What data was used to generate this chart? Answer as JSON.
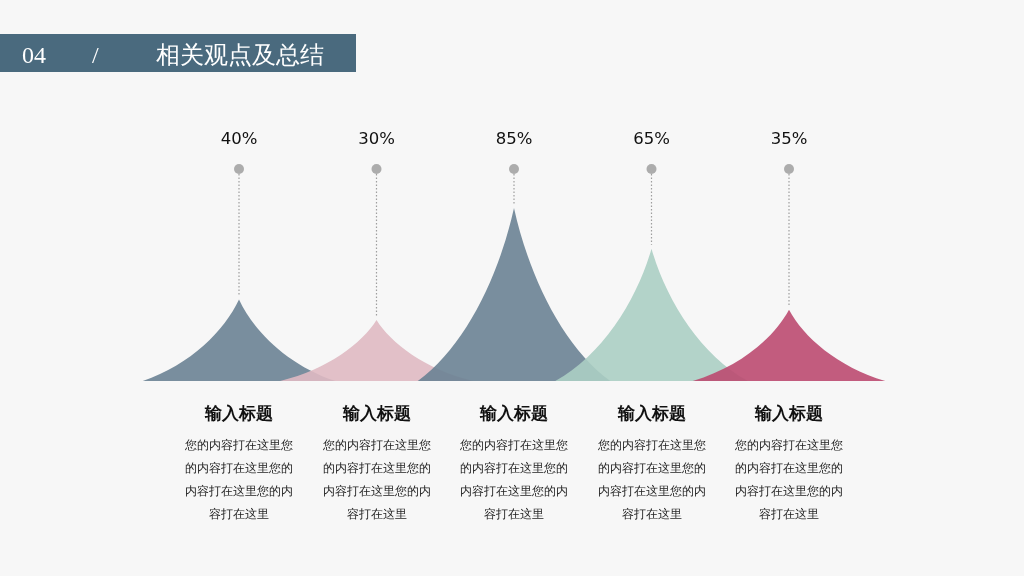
{
  "chart_data": {
    "type": "other",
    "title": "04 / 相关观点及总结",
    "categories": [
      "输入标题",
      "输入标题",
      "输入标题",
      "输入标题",
      "输入标题"
    ],
    "values": [
      40,
      30,
      85,
      65,
      35
    ],
    "colors": [
      "#6a8293",
      "#dfb9c2",
      "#6a8293",
      "#abcec3",
      "#bb4a70"
    ],
    "data_labels": true,
    "value_labels": [
      "40%",
      "30%",
      "85%",
      "65%",
      "35%"
    ],
    "annotations": [
      "您的内容打在这里您的内容打在这里您的内容打在这里您的内容打在这里",
      "您的内容打在这里您的内容打在这里您的内容打在这里您的内容打在这里",
      "您的内容打在这里您的内容打在这里您的内容打在这里您的内容打在这里",
      "您的内容打在这里您的内容打在这里您的内容打在这里您的内容打在这里",
      "您的内容打在这里您的内容打在这里您的内容打在这里您的内容打在这里"
    ]
  }
}
